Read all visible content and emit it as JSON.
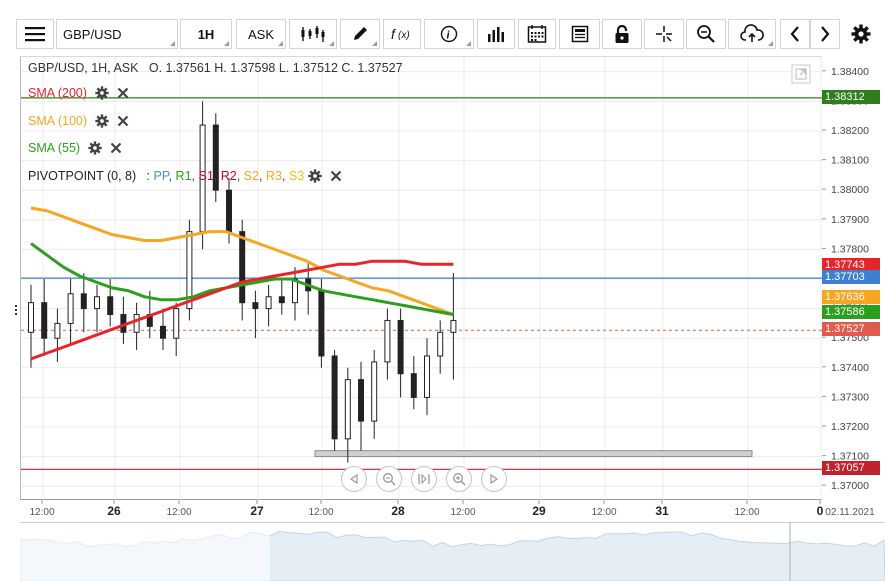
{
  "toolbar": {
    "symbol": "GBP/USD",
    "timeframe": "1H",
    "price_type": "ASK",
    "icons": [
      "menu-icon",
      "candlestick-icon",
      "pencil-icon",
      "function-icon",
      "info-icon",
      "bar-chart-icon",
      "calendar-icon",
      "news-icon",
      "lock-icon",
      "crosshair-icon",
      "zoom-icon",
      "cloud-upload-icon",
      "chevron-left-icon",
      "chevron-right-icon",
      "gear-icon"
    ]
  },
  "info": {
    "header": "GBP/USD, 1H, ASK",
    "ohlc": "O. 1.37561 H. 1.37598 L. 1.37512 C. 1.37527"
  },
  "indicators": [
    {
      "label": "SMA (200)",
      "color": "#e8242b"
    },
    {
      "label": "SMA (100)",
      "color": "#f5a623"
    },
    {
      "label": "SMA (55)",
      "color": "#2e9e1f"
    }
  ],
  "pivot": {
    "label": "PIVOTPOINT (0, 8)",
    "sep": ":",
    "items": [
      {
        "text": "PP",
        "color": "#4a90d9"
      },
      {
        "text": "R1",
        "color": "#2e9e1f"
      },
      {
        "text": "S1",
        "color": "#d0021b"
      },
      {
        "text": "R2",
        "color": "#d0021b"
      },
      {
        "text": "S2",
        "color": "#f5a623"
      },
      {
        "text": "R3",
        "color": "#f5a623"
      },
      {
        "text": "S3",
        "color": "#f8c200"
      }
    ]
  },
  "price_tags": [
    {
      "value": "1.38312",
      "bg": "#2e7d1f"
    },
    {
      "value": "1.37743",
      "bg": "#e8242b"
    },
    {
      "value": "1.37703",
      "bg": "#3f7fd0"
    },
    {
      "value": "1.37636",
      "bg": "#f5a623"
    },
    {
      "value": "1.37586",
      "bg": "#2e9e1f"
    },
    {
      "value": "1.37527",
      "bg": "#e05a4e"
    },
    {
      "value": "1.37057",
      "bg": "#c0232b"
    }
  ],
  "chart_data": {
    "type": "candlestick",
    "symbol": "GBP/USD",
    "timeframe": "1H",
    "ylim": [
      1.3695,
      1.3845
    ],
    "y_ticks": [
      "1.38400",
      "1.38300",
      "1.38200",
      "1.38100",
      "1.38000",
      "1.37900",
      "1.37800",
      "1.37700",
      "1.37600",
      "1.37500",
      "1.37400",
      "1.37300",
      "1.37200",
      "1.37100",
      "1.37000"
    ],
    "x_ticks": [
      "12:00",
      "26",
      "12:00",
      "27",
      "12:00",
      "28",
      "12:00",
      "29",
      "12:00",
      "31",
      "12:00",
      "0",
      "02.11.2021"
    ],
    "horizontal_lines": [
      {
        "value": 1.38312,
        "color": "#2e7d1f"
      },
      {
        "value": 1.37703,
        "color": "#3f7fd0"
      },
      {
        "value": 1.37527,
        "color": "#e05a4e",
        "dashed": true
      },
      {
        "value": 1.37057,
        "color": "#c0232b"
      }
    ],
    "sma200": [
      1.3743,
      1.3745,
      1.3747,
      1.3749,
      1.3751,
      1.3753,
      1.3755,
      1.3757,
      1.3759,
      1.3761,
      1.3763,
      1.3765,
      1.3767,
      1.3769,
      1.377,
      1.3771,
      1.3772,
      1.3773,
      1.3774,
      1.3775,
      1.3775,
      1.3776,
      1.3776,
      1.3776,
      1.3775,
      1.3775,
      1.3775
    ],
    "sma100": [
      1.3794,
      1.3793,
      1.3791,
      1.3789,
      1.3787,
      1.3785,
      1.3784,
      1.3783,
      1.3783,
      1.3784,
      1.3785,
      1.3786,
      1.3786,
      1.3784,
      1.3782,
      1.378,
      1.3778,
      1.3776,
      1.3773,
      1.3771,
      1.3769,
      1.3767,
      1.3766,
      1.3764,
      1.3762,
      1.376,
      1.3758
    ],
    "sma55": [
      1.3782,
      1.3778,
      1.3774,
      1.3771,
      1.3769,
      1.3767,
      1.3766,
      1.3764,
      1.3763,
      1.3763,
      1.3764,
      1.3766,
      1.3767,
      1.3768,
      1.3769,
      1.377,
      1.377,
      1.3768,
      1.3766,
      1.3765,
      1.3764,
      1.3763,
      1.3762,
      1.3761,
      1.376,
      1.3759,
      1.3758
    ],
    "candles": [
      [
        1.3752,
        1.3768,
        1.374,
        1.3762
      ],
      [
        1.3762,
        1.377,
        1.3744,
        1.375
      ],
      [
        1.375,
        1.376,
        1.3742,
        1.3755
      ],
      [
        1.3755,
        1.377,
        1.3748,
        1.3765
      ],
      [
        1.3765,
        1.3772,
        1.3752,
        1.376
      ],
      [
        1.376,
        1.3768,
        1.3752,
        1.3764
      ],
      [
        1.3764,
        1.377,
        1.3754,
        1.3758
      ],
      [
        1.3758,
        1.3764,
        1.3748,
        1.3752
      ],
      [
        1.3752,
        1.3762,
        1.3746,
        1.3758
      ],
      [
        1.3758,
        1.3766,
        1.375,
        1.3754
      ],
      [
        1.3754,
        1.376,
        1.3746,
        1.375
      ],
      [
        1.375,
        1.3762,
        1.3744,
        1.376
      ],
      [
        1.376,
        1.379,
        1.3756,
        1.3786
      ],
      [
        1.3786,
        1.383,
        1.378,
        1.3822
      ],
      [
        1.3822,
        1.3826,
        1.3796,
        1.38
      ],
      [
        1.38,
        1.3804,
        1.3782,
        1.3786
      ],
      [
        1.3786,
        1.379,
        1.3756,
        1.3762
      ],
      [
        1.3762,
        1.3766,
        1.375,
        1.376
      ],
      [
        1.376,
        1.3768,
        1.3754,
        1.3764
      ],
      [
        1.3764,
        1.377,
        1.3758,
        1.3762
      ],
      [
        1.3762,
        1.3774,
        1.3756,
        1.377
      ],
      [
        1.377,
        1.3776,
        1.3758,
        1.3766
      ],
      [
        1.3766,
        1.377,
        1.374,
        1.3744
      ],
      [
        1.3744,
        1.3746,
        1.3712,
        1.3716
      ],
      [
        1.3716,
        1.374,
        1.3708,
        1.3736
      ],
      [
        1.3736,
        1.3742,
        1.3712,
        1.3722
      ],
      [
        1.3722,
        1.3746,
        1.3716,
        1.3742
      ],
      [
        1.3742,
        1.376,
        1.3736,
        1.3756
      ],
      [
        1.3756,
        1.376,
        1.373,
        1.3738
      ],
      [
        1.3738,
        1.3744,
        1.3726,
        1.373
      ],
      [
        1.373,
        1.375,
        1.3724,
        1.3744
      ],
      [
        1.3744,
        1.3756,
        1.3738,
        1.3752
      ],
      [
        1.3752,
        1.3772,
        1.3736,
        1.3756
      ]
    ],
    "support_box": {
      "from": 1.3712,
      "to": 1.371
    }
  },
  "navigator": {
    "label": "navigator"
  }
}
